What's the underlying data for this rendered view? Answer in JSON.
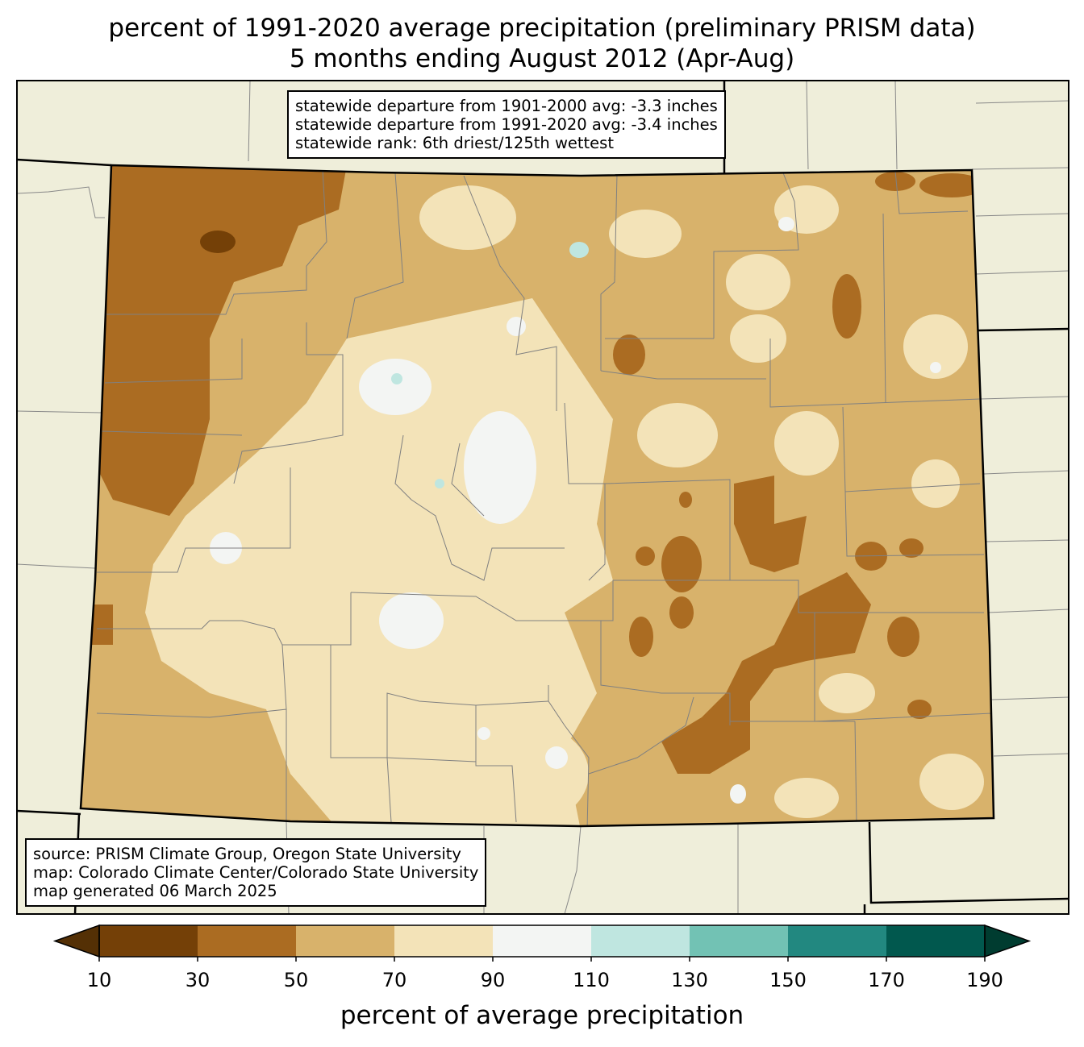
{
  "title": {
    "line1": "percent of 1991-2020 average precipitation (preliminary PRISM data)",
    "line2": "5 months ending August 2012 (Apr-Aug)"
  },
  "stats_box": {
    "line1": "statewide departure from 1901-2000 avg: -3.3 inches",
    "line2": "statewide departure from 1991-2020 avg: -3.4 inches",
    "line3": "statewide rank: 6th driest/125th wettest"
  },
  "source_box": {
    "line1": "source: PRISM Climate Group, Oregon State University",
    "line2": "map: Colorado Climate Center/Colorado State University",
    "line3": "map generated 06 March 2025"
  },
  "colorbar": {
    "label": "percent of average precipitation",
    "ticks": [
      "10",
      "30",
      "50",
      "70",
      "90",
      "110",
      "130",
      "150",
      "170",
      "190"
    ],
    "under_color": "#543005",
    "over_color": "#003c30",
    "bins": [
      {
        "from": 10,
        "to": 30,
        "color": "#744007"
      },
      {
        "from": 30,
        "to": 50,
        "color": "#ab6c22"
      },
      {
        "from": 50,
        "to": 70,
        "color": "#d8b26b"
      },
      {
        "from": 70,
        "to": 90,
        "color": "#f3e3b8"
      },
      {
        "from": 90,
        "to": 110,
        "color": "#f3f5f3"
      },
      {
        "from": 110,
        "to": 130,
        "color": "#bfe6e0"
      },
      {
        "from": 130,
        "to": 150,
        "color": "#72c2b4"
      },
      {
        "from": 150,
        "to": 170,
        "color": "#228880"
      },
      {
        "from": 170,
        "to": 190,
        "color": "#01584e"
      }
    ]
  },
  "map_colors": {
    "background": "#efeeda",
    "state_border": "#000000",
    "county_lines": "#808080"
  }
}
